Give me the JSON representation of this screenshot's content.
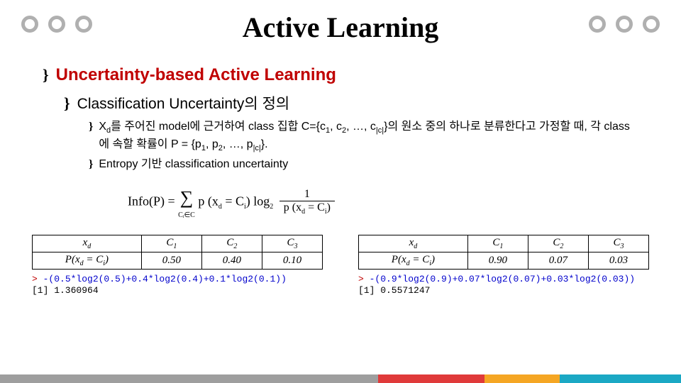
{
  "title": "Active Learning",
  "heading1": "Uncertainty-based Active Learning",
  "heading2": "Classification Uncertainty의 정의",
  "bullet1_pre": "X",
  "bullet1_sub": "d",
  "bullet1_mid": "를 주어진 model에 근거하여 class 집합 C={c",
  "bullet1_s1": "1",
  "bullet1_c": ", c",
  "bullet1_s2": "2",
  "bullet1_dots": ", …, c",
  "bullet1_s3": "|c|",
  "bullet1_end": "}의 원소 중의 하나로 분류한다고 가정할 때, 각 class에 속할 확률이 P = {p",
  "bullet1_p1": "1",
  "bullet1_pc": ", p",
  "bullet1_p2": "2",
  "bullet1_pd": ", …, p",
  "bullet1_p3": "|c|",
  "bullet1_fin": "}.",
  "bullet2": "Entropy 기반 classification uncertainty",
  "formula": {
    "lhs": "Info(P) = ",
    "sum_sub": "Cᵢ∈C",
    "p_part": " p (x",
    "p_sub1": "d",
    "p_mid": " = C",
    "p_sub2": "i",
    "p_close": ") log",
    "log_base": "2",
    "frac_num": "1",
    "frac_den_pre": "p (x",
    "frac_den_s1": "d",
    "frac_den_mid": " = C",
    "frac_den_s2": "i",
    "frac_den_end": ")"
  },
  "table1": {
    "headers": [
      "xd",
      "C1",
      "C2",
      "C3"
    ],
    "row_label_pre": "P(x",
    "row_label_sub": "d",
    "row_label_mid": " = C",
    "row_label_sub2": "i",
    "row_label_end": ")",
    "values": [
      "0.50",
      "0.40",
      "0.10"
    ]
  },
  "table2": {
    "headers": [
      "xd",
      "C1",
      "C2",
      "C3"
    ],
    "values": [
      "0.90",
      "0.07",
      "0.03"
    ]
  },
  "code1": {
    "prompt": "> ",
    "input": "-(0.5*log2(0.5)+0.4*log2(0.4)+0.1*log2(0.1))",
    "output": "[1] 1.360964"
  },
  "code2": {
    "prompt": "> ",
    "input": "-(0.9*log2(0.9)+0.07*log2(0.07)+0.03*log2(0.03))",
    "output": "[1] 0.5571247"
  },
  "colors": {
    "accent": "#c00000",
    "circle": "#b0b0b0",
    "footer_gray": "#9e9e9e",
    "footer_red": "#e03a3a",
    "footer_orange": "#f5a623",
    "footer_teal": "#1ba8c4"
  }
}
